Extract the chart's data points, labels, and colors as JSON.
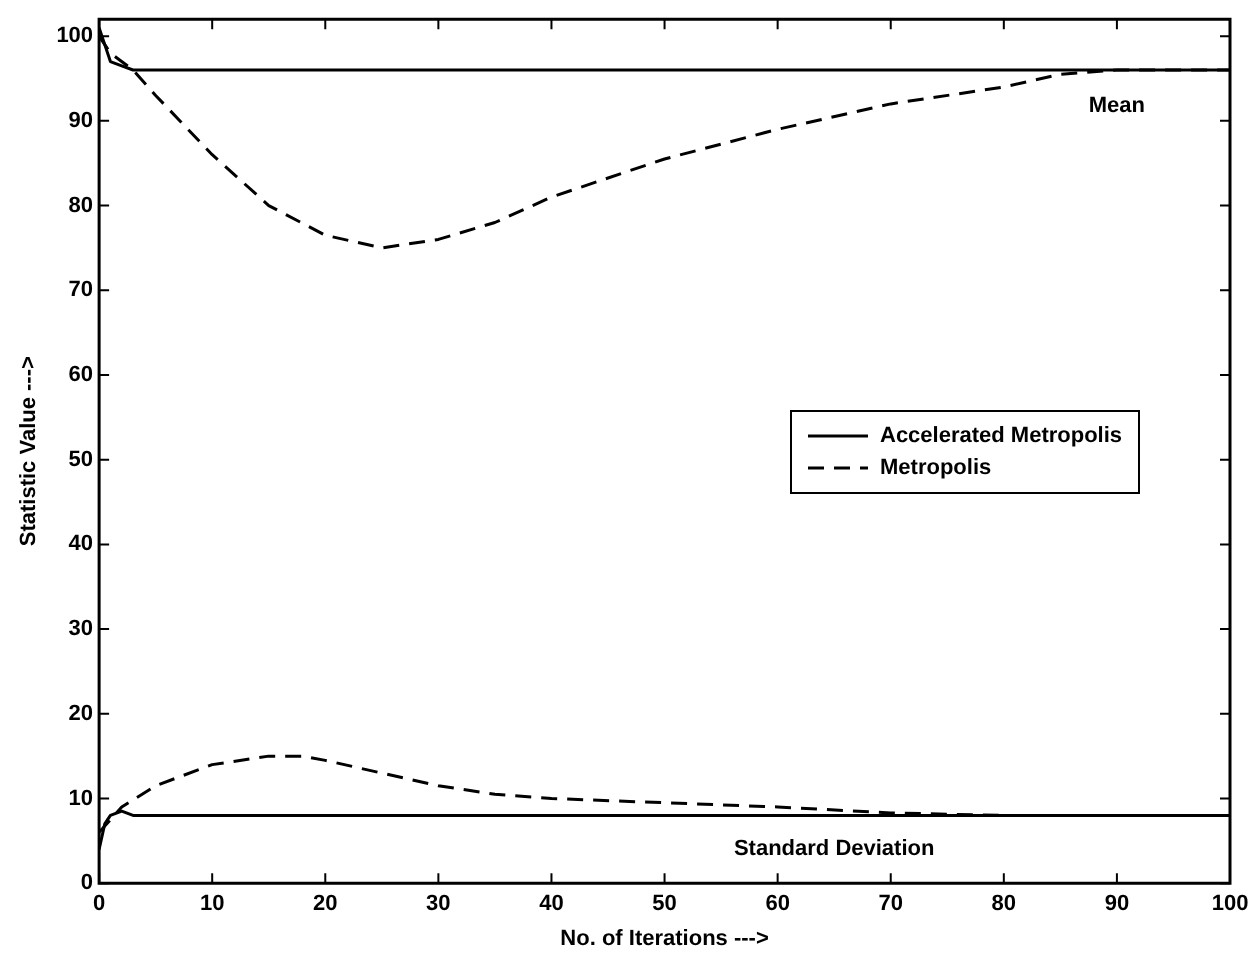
{
  "chart_data": {
    "type": "line",
    "xlabel": "No. of Iterations --->",
    "ylabel": "Statistic Value --->",
    "xlim": [
      0,
      100
    ],
    "ylim": [
      0,
      102
    ],
    "xticks": [
      0,
      10,
      20,
      30,
      40,
      50,
      60,
      70,
      80,
      90,
      100
    ],
    "yticks": [
      0,
      10,
      20,
      30,
      40,
      50,
      60,
      70,
      80,
      90,
      100
    ],
    "grid": false,
    "legend": "right",
    "marker": "none",
    "series": [
      {
        "name": "Accelerated Metropolis",
        "color": "#000000",
        "line_style": "solid",
        "x": [
          0,
          0.5,
          1,
          2,
          3,
          5,
          10,
          20,
          30,
          40,
          50,
          60,
          70,
          80,
          90,
          100
        ],
        "values": [
          101,
          99,
          97,
          96.5,
          96,
          96,
          96,
          96,
          96,
          96,
          96,
          96,
          96,
          96,
          96,
          96
        ]
      },
      {
        "name": "Metropolis",
        "color": "#000000",
        "line_style": "dashed",
        "x": [
          0,
          1,
          3,
          5,
          10,
          15,
          20,
          25,
          30,
          35,
          40,
          50,
          60,
          70,
          80,
          85,
          90,
          100
        ],
        "values": [
          100,
          98,
          96,
          93,
          86,
          80,
          76.5,
          75,
          76,
          78,
          81,
          85.5,
          89,
          92,
          94,
          95.5,
          96,
          96
        ]
      },
      {
        "color": "#000000",
        "line_style": "solid",
        "x": [
          0,
          0.5,
          1,
          2,
          3,
          5,
          10,
          20,
          40,
          60,
          80,
          100
        ],
        "values": [
          4,
          7,
          8,
          8.5,
          8,
          8,
          8,
          8,
          8,
          8,
          8,
          8
        ]
      },
      {
        "color": "#000000",
        "line_style": "dashed",
        "x": [
          0,
          2,
          5,
          10,
          15,
          18,
          20,
          25,
          30,
          35,
          40,
          50,
          60,
          70,
          80,
          90,
          100
        ],
        "values": [
          6,
          9,
          11.5,
          14,
          15,
          15,
          14.5,
          13,
          11.5,
          10.5,
          10,
          9.5,
          9,
          8.3,
          8,
          8,
          8
        ]
      }
    ],
    "annotations": [
      "Mean",
      "Standard Deviation"
    ]
  }
}
